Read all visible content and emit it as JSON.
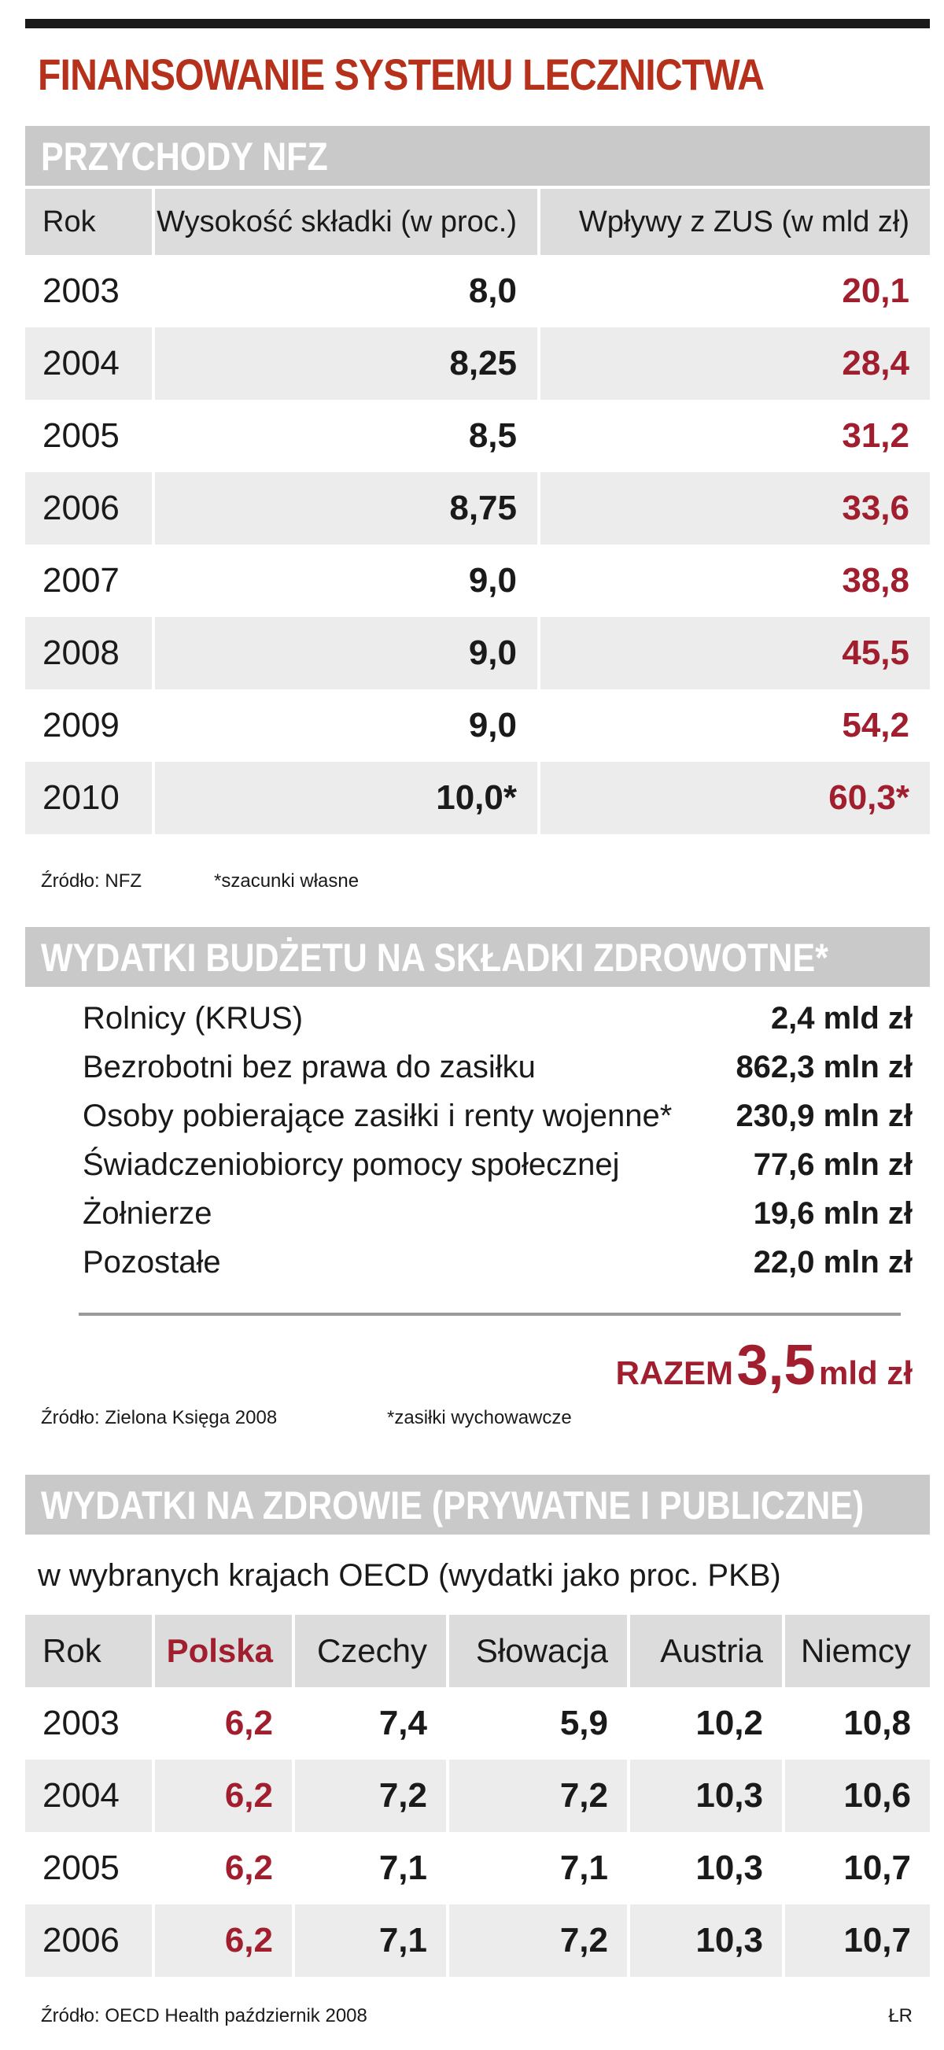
{
  "title": "FINANSOWANIE SYSTEMU LECZNICTWA",
  "section1": {
    "heading": "PRZYCHODY NFZ",
    "columns": [
      "Rok",
      "Wysokość składki (w proc.)",
      "Wpływy z ZUS (w mld zł)"
    ],
    "rows": [
      {
        "year": "2003",
        "rate": "8,0",
        "income": "20,1"
      },
      {
        "year": "2004",
        "rate": "8,25",
        "income": "28,4"
      },
      {
        "year": "2005",
        "rate": "8,5",
        "income": "31,2"
      },
      {
        "year": "2006",
        "rate": "8,75",
        "income": "33,6"
      },
      {
        "year": "2007",
        "rate": "9,0",
        "income": "38,8"
      },
      {
        "year": "2008",
        "rate": "9,0",
        "income": "45,5"
      },
      {
        "year": "2009",
        "rate": "9,0",
        "income": "54,2"
      },
      {
        "year": "2010",
        "rate": "10,0*",
        "income": "60,3*"
      }
    ],
    "source": "Źródło: NFZ",
    "note": "*szacunki własne"
  },
  "section2": {
    "heading": "WYDATKI BUDŻETU NA SKŁADKI ZDROWOTNE*",
    "items": [
      {
        "label": "Rolnicy (KRUS)",
        "value": "2,4 mld zł"
      },
      {
        "label": "Bezrobotni bez prawa do zasiłku",
        "value": "862,3 mln zł"
      },
      {
        "label": "Osoby pobierające zasiłki i renty wojenne*",
        "value": "230,9 mln zł"
      },
      {
        "label": "Świadczeniobiorcy pomocy społecznej",
        "value": "77,6 mln zł"
      },
      {
        "label": "Żołnierze",
        "value": "19,6 mln zł"
      },
      {
        "label": "Pozostałe",
        "value": "22,0 mln zł"
      }
    ],
    "total_label": "RAZEM",
    "total_value": "3,5",
    "total_unit": "mld zł",
    "source": "Źródło: Zielona Księga 2008",
    "note": "*zasiłki wychowawcze"
  },
  "section3": {
    "heading": "WYDATKI NA ZDROWIE (PRYWATNE I PUBLICZNE)",
    "subheading": "w wybranych krajach OECD (wydatki jako proc. PKB)",
    "columns": [
      "Rok",
      "Polska",
      "Czechy",
      "Słowacja",
      "Austria",
      "Niemcy"
    ],
    "rows": [
      {
        "year": "2003",
        "values": [
          "6,2",
          "7,4",
          "5,9",
          "10,2",
          "10,8"
        ]
      },
      {
        "year": "2004",
        "values": [
          "6,2",
          "7,2",
          "7,2",
          "10,3",
          "10,6"
        ]
      },
      {
        "year": "2005",
        "values": [
          "6,2",
          "7,1",
          "7,1",
          "10,3",
          "10,7"
        ]
      },
      {
        "year": "2006",
        "values": [
          "6,2",
          "7,1",
          "7,2",
          "10,3",
          "10,7"
        ]
      }
    ],
    "source": "Źródło: OECD Health październik 2008",
    "author": "ŁR"
  },
  "colors": {
    "accent": "#b5311b",
    "highlight": "#a01e2e",
    "bar": "#c9c9c9",
    "shade": "#ececec"
  }
}
